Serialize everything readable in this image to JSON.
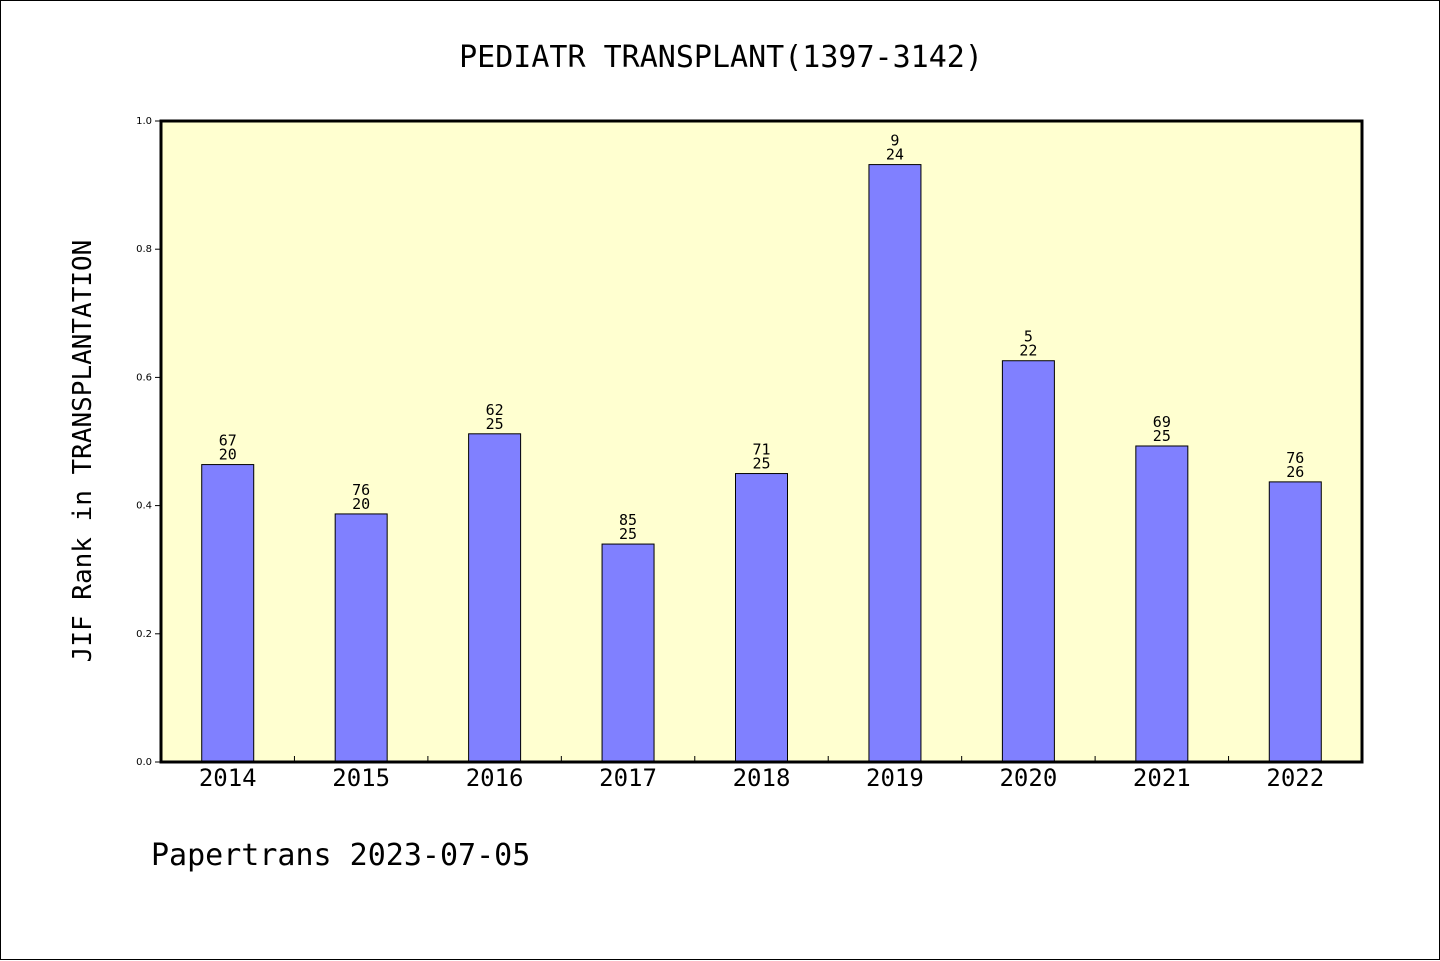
{
  "chart_data": {
    "type": "bar",
    "title": "PEDIATR TRANSPLANT(1397-3142)",
    "ylabel": "JIF Rank in TRANSPLANTATION",
    "xlabel": "",
    "ylim": [
      0,
      1.0
    ],
    "yticks": [
      "0.0",
      "0.2",
      "0.4",
      "0.6",
      "0.8",
      "1.0"
    ],
    "categories": [
      "2014",
      "2015",
      "2016",
      "2017",
      "2018",
      "2019",
      "2020",
      "2021",
      "2022"
    ],
    "values": [
      0.464,
      0.387,
      0.512,
      0.34,
      0.45,
      0.932,
      0.626,
      0.493,
      0.437
    ],
    "labels_top": [
      "67",
      "76",
      "62",
      "85",
      "71",
      "9",
      "5",
      "69",
      "76"
    ],
    "labels_bottom": [
      "20",
      "20",
      "25",
      "25",
      "25",
      "24",
      "22",
      "25",
      "26"
    ],
    "colors": {
      "plot_background": "#ffffd0",
      "bar_fill": "#8080ff",
      "bar_stroke": "#000000"
    },
    "grid": false,
    "legend": "none"
  },
  "footer": {
    "text": "Papertrans 2023-07-05"
  }
}
